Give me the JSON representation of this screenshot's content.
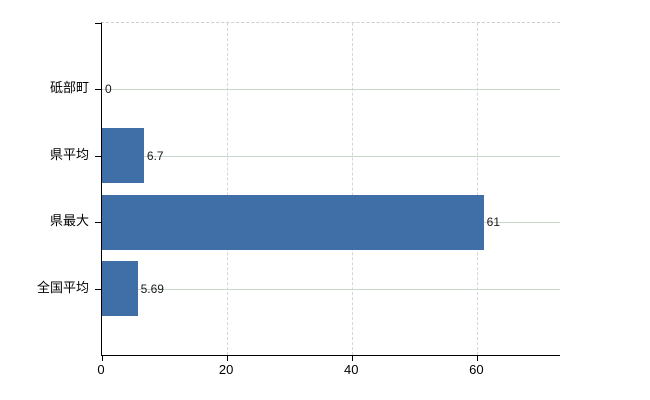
{
  "chart_data": {
    "type": "bar",
    "orientation": "horizontal",
    "title": "",
    "xlabel": "",
    "ylabel": "",
    "categories": [
      "砥部町",
      "県平均",
      "県最大",
      "全国平均"
    ],
    "values": [
      0,
      6.7,
      61,
      5.69
    ],
    "value_labels": [
      "0",
      "6.7",
      "61",
      "5.69"
    ],
    "x_ticks": [
      0,
      20,
      40,
      60
    ],
    "xlim": [
      0,
      73.2
    ],
    "grid": true,
    "legend": "none",
    "bar_color": "#3f6fa6",
    "axis_color": "#000000",
    "hgrid_color": "#ccd8cb",
    "vgrid_color": "#d9d4d9"
  }
}
